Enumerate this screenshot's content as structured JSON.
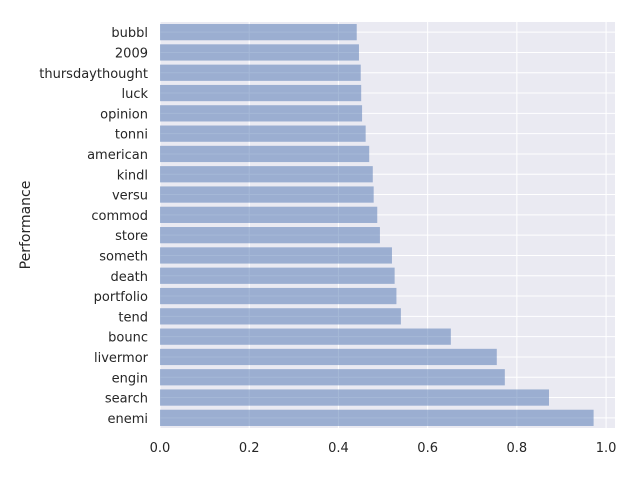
{
  "chart_data": {
    "type": "bar",
    "orientation": "horizontal",
    "title": "",
    "xlabel": "",
    "ylabel": "Performance",
    "categories": [
      "enemi",
      "search",
      "engin",
      "livermor",
      "bounc",
      "tend",
      "portfolio",
      "death",
      "someth",
      "store",
      "commod",
      "versu",
      "kindl",
      "american",
      "tonni",
      "opinion",
      "luck",
      "thursdaythought",
      "2009",
      "bubbl"
    ],
    "values": [
      0.972,
      0.872,
      0.773,
      0.755,
      0.652,
      0.54,
      0.53,
      0.526,
      0.52,
      0.493,
      0.487,
      0.479,
      0.477,
      0.469,
      0.461,
      0.453,
      0.451,
      0.45,
      0.446,
      0.441
    ],
    "xlim": [
      0.0,
      1.02
    ],
    "xticks": [
      0.0,
      0.2,
      0.4,
      0.6,
      0.8,
      1.0
    ],
    "xtick_labels": [
      "0.0",
      "0.2",
      "0.4",
      "0.6",
      "0.8",
      "1.0"
    ],
    "grid": true,
    "legend": "none",
    "colors": {
      "background": "#eaeaf2",
      "grid": "#ffffff",
      "bar": "#4c72b0",
      "bar_opacity": 0.5,
      "text": "#262626"
    }
  }
}
